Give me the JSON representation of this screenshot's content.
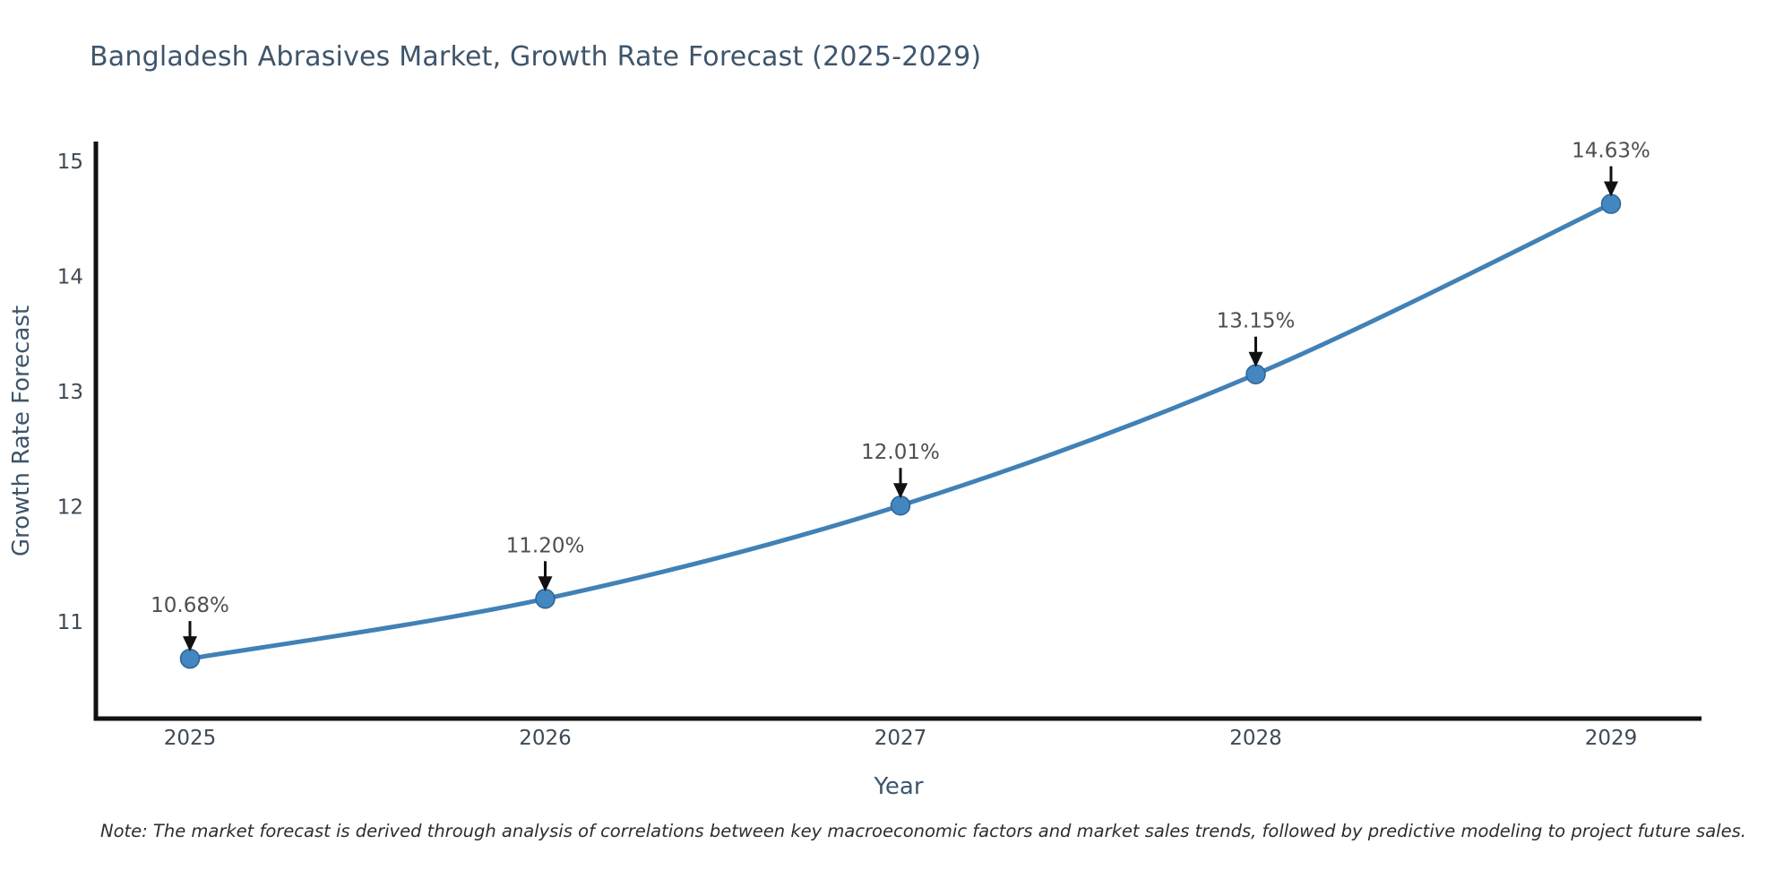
{
  "chart_data": {
    "type": "line",
    "title": "Bangladesh Abrasives Market, Growth Rate Forecast (2025-2029)",
    "xlabel": "Year",
    "ylabel": "Growth Rate Forecast",
    "categories": [
      "2025",
      "2026",
      "2027",
      "2028",
      "2029"
    ],
    "values": [
      10.68,
      11.2,
      12.01,
      13.15,
      14.63
    ],
    "point_labels": [
      "10.68%",
      "11.20%",
      "12.01%",
      "13.15%",
      "14.63%"
    ],
    "yticks": [
      11,
      12,
      13,
      14,
      15
    ],
    "ylim": [
      10.16,
      15.16
    ],
    "grid": false,
    "legend_position": "none",
    "line_shape": "spline",
    "annotation_style": "value label above point with downward black arrow",
    "note": "Note: The market forecast is derived through analysis of correlations between key macroeconomic factors and market sales trends, followed by predictive modeling to project future sales.",
    "colors": {
      "line": "#4181b6",
      "marker_fill": "#4486bf",
      "marker_edge": "#2f6496",
      "axis_line": "#111111",
      "arrow": "#111111",
      "title_text": "#3e556b",
      "tick_text": "#3d4955",
      "annotation_text": "#4f4f4f",
      "note_text": "#2d2d2d",
      "background": "#ffffff"
    }
  }
}
